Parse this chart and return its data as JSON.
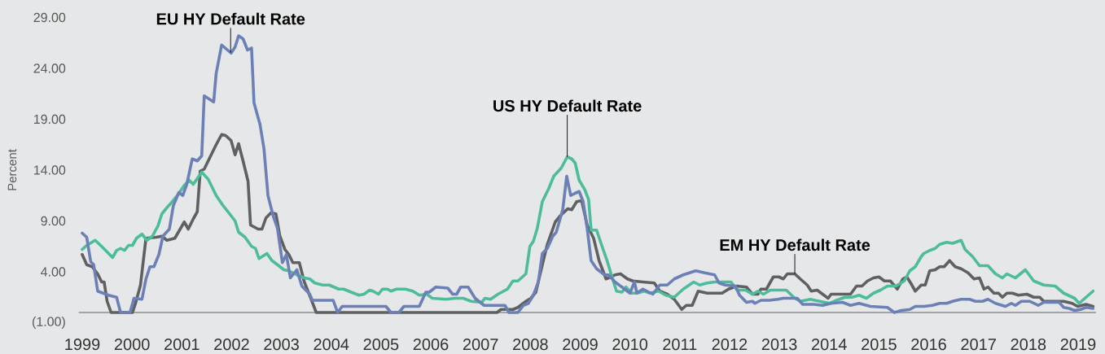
{
  "chart_data": {
    "type": "line",
    "ylabel": "Percent",
    "xlim": [
      1998.93,
      2019.36
    ],
    "xticks": [
      1999,
      2000,
      2001,
      2002,
      2003,
      2004,
      2005,
      2006,
      2007,
      2008,
      2009,
      2010,
      2011,
      2012,
      2013,
      2014,
      2015,
      2016,
      2017,
      2018,
      2019
    ],
    "ylim": [
      -1,
      29
    ],
    "yticks": [
      {
        "value": -1,
        "label": "(1.00)"
      },
      {
        "value": 4,
        "label": "4.00"
      },
      {
        "value": 9,
        "label": "9.00"
      },
      {
        "value": 14,
        "label": "14.00"
      },
      {
        "value": 19,
        "label": "19.00"
      },
      {
        "value": 24,
        "label": "24.00"
      },
      {
        "value": 29,
        "label": "29.00"
      }
    ],
    "series": [
      {
        "name": "EM HY Default Rate",
        "color": "#5f6062",
        "x": [
          1999.0,
          1999.09,
          1999.2,
          1999.31,
          1999.39,
          1999.44,
          1999.5,
          1999.58,
          2000.01,
          2000.07,
          2000.17,
          2000.28,
          2000.49,
          2000.6,
          2000.7,
          2000.86,
          2001.05,
          2001.13,
          2001.23,
          2001.31,
          2001.37,
          2001.45,
          2001.58,
          2001.69,
          2001.8,
          2001.88,
          2001.99,
          2002.07,
          2002.14,
          2002.24,
          2002.33,
          2002.38,
          2002.53,
          2002.61,
          2002.69,
          2002.79,
          2002.89,
          2002.97,
          2003.07,
          2003.15,
          2003.23,
          2003.36,
          2003.46,
          2003.59,
          2003.7,
          2007.33,
          2007.41,
          2007.65,
          2007.75,
          2007.91,
          2008.01,
          2008.11,
          2008.25,
          2008.34,
          2008.5,
          2008.6,
          2008.75,
          2008.83,
          2008.93,
          2009.03,
          2009.14,
          2009.27,
          2009.38,
          2009.52,
          2009.62,
          2009.7,
          2009.81,
          2009.95,
          2010.06,
          2010.26,
          2010.49,
          2010.6,
          2010.75,
          2010.89,
          2011.04,
          2011.13,
          2011.25,
          2011.37,
          2011.55,
          2011.85,
          2011.98,
          2012.15,
          2012.34,
          2012.46,
          2012.57,
          2012.63,
          2012.74,
          2012.88,
          2012.99,
          2013.08,
          2013.16,
          2013.31,
          2013.42,
          2013.56,
          2013.64,
          2013.76,
          2013.87,
          2013.98,
          2014.04,
          2014.43,
          2014.55,
          2014.66,
          2014.77,
          2014.89,
          2015.0,
          2015.11,
          2015.23,
          2015.37,
          2015.48,
          2015.56,
          2015.65,
          2015.73,
          2015.85,
          2015.93,
          2016.02,
          2016.13,
          2016.22,
          2016.31,
          2016.42,
          2016.53,
          2016.65,
          2016.79,
          2016.91,
          2017.02,
          2017.11,
          2017.19,
          2017.31,
          2017.4,
          2017.48,
          2017.57,
          2017.68,
          2017.8,
          2017.97,
          2018.11,
          2018.23,
          2018.31,
          2018.48,
          2018.71,
          2018.88,
          2018.99,
          2019.16,
          2019.3
        ],
        "values": [
          5.7,
          4.7,
          4.5,
          3.8,
          3.0,
          3.0,
          1.1,
          0,
          0,
          0.9,
          2.7,
          7.3,
          7.4,
          7.5,
          7.1,
          7.3,
          8.9,
          8.2,
          9.2,
          9.9,
          13.9,
          14.1,
          15.4,
          16.5,
          17.5,
          17.4,
          16.9,
          15.5,
          16.6,
          14.7,
          12.9,
          8.6,
          8.2,
          8.2,
          9.3,
          9.8,
          9.7,
          7.5,
          6.2,
          5.7,
          4.9,
          4.9,
          3.0,
          1.4,
          0,
          0,
          0.3,
          0.3,
          0.5,
          1.1,
          1.4,
          2.0,
          4.9,
          6.7,
          8.9,
          9.5,
          10.2,
          10.1,
          10.9,
          11.0,
          8.6,
          7.3,
          5.1,
          3.3,
          3.5,
          3.7,
          3.8,
          3.3,
          3.1,
          3.0,
          2.9,
          2.1,
          1.8,
          1.3,
          0.3,
          0.7,
          0.7,
          2.1,
          1.9,
          1.9,
          2.3,
          2.6,
          2.5,
          1.8,
          1.8,
          2.3,
          2.3,
          3.5,
          3.5,
          3.3,
          3.8,
          3.8,
          3.3,
          2.7,
          2.1,
          2.2,
          1.8,
          1.4,
          1.8,
          1.8,
          2.6,
          2.6,
          3.1,
          3.4,
          3.5,
          3.1,
          3.1,
          2.3,
          3.3,
          3.5,
          2.8,
          2.1,
          2.7,
          2.7,
          4.1,
          4.2,
          4.5,
          4.5,
          5.1,
          4.5,
          4.3,
          3.9,
          3.3,
          3.4,
          2.3,
          2.5,
          1.9,
          1.9,
          1.5,
          1.9,
          1.9,
          1.7,
          1.8,
          1.5,
          1.5,
          1.1,
          1.1,
          1.1,
          0.9,
          0.6,
          0.8,
          0.6
        ]
      },
      {
        "name": "US HY Default Rate",
        "color": "#4cbc9c",
        "x": [
          1999.0,
          1999.09,
          1999.26,
          1999.39,
          1999.61,
          1999.69,
          1999.77,
          1999.85,
          1999.93,
          2000.01,
          2000.09,
          2000.2,
          2000.3,
          2000.41,
          2000.52,
          2000.6,
          2000.7,
          2000.81,
          2000.91,
          2001.05,
          2001.15,
          2001.23,
          2001.4,
          2001.53,
          2001.69,
          2001.83,
          2001.96,
          2002.07,
          2002.14,
          2002.27,
          2002.4,
          2002.48,
          2002.55,
          2002.71,
          2002.81,
          2002.92,
          2003.05,
          2003.15,
          2003.31,
          2003.46,
          2003.57,
          2003.67,
          2003.83,
          2003.96,
          2004.15,
          2004.25,
          2004.4,
          2004.56,
          2004.66,
          2004.77,
          2004.84,
          2004.95,
          2005.03,
          2005.13,
          2005.2,
          2005.31,
          2005.49,
          2005.64,
          2005.77,
          2005.92,
          2006.03,
          2006.31,
          2006.49,
          2006.65,
          2006.81,
          2007.02,
          2007.09,
          2007.2,
          2007.35,
          2007.54,
          2007.65,
          2007.75,
          2007.91,
          2007.99,
          2008.06,
          2008.14,
          2008.24,
          2008.37,
          2008.47,
          2008.62,
          2008.74,
          2008.83,
          2008.9,
          2008.98,
          2009.09,
          2009.17,
          2009.22,
          2009.33,
          2009.44,
          2009.54,
          2009.62,
          2009.73,
          2009.84,
          2009.92,
          2010.03,
          2010.14,
          2010.29,
          2010.4,
          2010.57,
          2010.72,
          2010.89,
          2011.07,
          2011.28,
          2011.4,
          2011.55,
          2011.7,
          2011.85,
          2012.03,
          2012.15,
          2012.32,
          2012.46,
          2012.57,
          2012.68,
          2012.82,
          2013.14,
          2013.31,
          2013.42,
          2013.62,
          2013.81,
          2014.01,
          2014.15,
          2014.32,
          2014.46,
          2014.6,
          2014.75,
          2014.89,
          2015.03,
          2015.17,
          2015.34,
          2015.51,
          2015.62,
          2015.73,
          2015.85,
          2015.9,
          2016.02,
          2016.13,
          2016.22,
          2016.36,
          2016.48,
          2016.65,
          2016.73,
          2016.88,
          2017.02,
          2017.19,
          2017.34,
          2017.48,
          2017.57,
          2017.74,
          2017.94,
          2018.11,
          2018.31,
          2018.54,
          2018.71,
          2018.93,
          2019.02,
          2019.3
        ],
        "values": [
          6.2,
          6.6,
          7.1,
          6.5,
          5.4,
          6.1,
          6.3,
          6.1,
          6.6,
          6.6,
          7.3,
          7.7,
          7.1,
          7.5,
          8.5,
          9.7,
          10.3,
          10.9,
          11.5,
          12.5,
          13.0,
          12.6,
          13.8,
          13.1,
          11.5,
          10.5,
          9.7,
          9.0,
          7.9,
          7.4,
          6.5,
          6.3,
          5.3,
          5.8,
          5.1,
          4.7,
          4.2,
          4.1,
          3.7,
          3.4,
          3.3,
          2.9,
          2.7,
          2.7,
          2.3,
          2.3,
          2.0,
          1.7,
          1.8,
          2.2,
          2.1,
          1.8,
          2.3,
          2.3,
          2.1,
          2.3,
          2.3,
          2.1,
          1.7,
          1.8,
          1.4,
          1.3,
          1.4,
          1.4,
          1.1,
          1.0,
          1.4,
          1.3,
          1.8,
          2.3,
          3.1,
          3.1,
          3.8,
          6.5,
          7.0,
          8.3,
          10.9,
          12.2,
          13.4,
          14.2,
          15.3,
          15.1,
          14.7,
          13.0,
          12.1,
          11.1,
          8.1,
          8.1,
          6.5,
          5.1,
          3.8,
          2.1,
          2.0,
          2.5,
          1.9,
          1.9,
          2.1,
          1.9,
          2.1,
          1.7,
          1.5,
          2.3,
          3.0,
          2.7,
          2.9,
          3.0,
          3.0,
          3.0,
          2.2,
          2.2,
          1.8,
          2.1,
          1.8,
          2.2,
          2.2,
          1.4,
          1.1,
          1.3,
          1.1,
          0.9,
          1.2,
          1.5,
          1.5,
          1.7,
          1.4,
          1.9,
          2.2,
          2.6,
          2.6,
          3.1,
          4.1,
          4.5,
          5.5,
          5.8,
          6.1,
          6.3,
          6.7,
          6.9,
          6.8,
          7.1,
          6.2,
          5.5,
          4.6,
          4.6,
          3.8,
          3.4,
          3.8,
          3.4,
          4.2,
          3.1,
          2.7,
          2.6,
          1.9,
          1.4,
          0.9,
          2.1
        ]
      },
      {
        "name": "EU HY Default Rate",
        "color": "#6b80b6",
        "x": [
          1999.0,
          1999.09,
          1999.17,
          1999.23,
          1999.31,
          1999.42,
          1999.53,
          1999.69,
          1999.77,
          1999.96,
          2000.04,
          2000.2,
          2000.28,
          2000.36,
          2000.44,
          2000.54,
          2000.62,
          2000.75,
          2000.83,
          2000.94,
          2001.02,
          2001.1,
          2001.21,
          2001.31,
          2001.4,
          2001.45,
          2001.64,
          2001.69,
          2001.8,
          2001.99,
          2002.07,
          2002.14,
          2002.23,
          2002.32,
          2002.4,
          2002.45,
          2002.57,
          2002.65,
          2002.73,
          2002.84,
          2002.92,
          2003.02,
          2003.1,
          2003.18,
          2003.31,
          2003.41,
          2003.57,
          2003.62,
          2004.04,
          2004.13,
          2004.22,
          2005.1,
          2005.2,
          2005.36,
          2005.46,
          2005.77,
          2005.9,
          2005.97,
          2006.1,
          2006.34,
          2006.44,
          2006.52,
          2006.6,
          2006.75,
          2006.89,
          2007.07,
          2007.49,
          2007.57,
          2007.75,
          2007.86,
          2007.96,
          2008.06,
          2008.16,
          2008.24,
          2008.34,
          2008.45,
          2008.52,
          2008.65,
          2008.73,
          2008.81,
          2008.89,
          2008.98,
          2009.06,
          2009.14,
          2009.22,
          2009.33,
          2009.49,
          2009.57,
          2009.7,
          2009.84,
          2010.0,
          2010.09,
          2010.14,
          2010.26,
          2010.46,
          2010.6,
          2010.75,
          2010.89,
          2011.07,
          2011.32,
          2011.5,
          2011.7,
          2011.79,
          2011.91,
          2012.12,
          2012.2,
          2012.34,
          2012.46,
          2012.51,
          2012.63,
          2012.8,
          2012.97,
          2013.08,
          2013.36,
          2013.47,
          2013.7,
          2013.87,
          2014.04,
          2014.27,
          2014.43,
          2014.6,
          2014.83,
          2015.17,
          2015.31,
          2015.45,
          2015.62,
          2015.73,
          2015.9,
          2016.07,
          2016.22,
          2016.36,
          2016.48,
          2016.65,
          2016.82,
          2016.94,
          2017.08,
          2017.19,
          2017.34,
          2017.54,
          2017.66,
          2017.74,
          2017.86,
          2018.03,
          2018.2,
          2018.31,
          2018.62,
          2018.71,
          2018.82,
          2018.93,
          2019.05,
          2019.16,
          2019.3
        ],
        "values": [
          7.8,
          7.4,
          5.0,
          4.7,
          2.1,
          1.9,
          1.7,
          1.5,
          0,
          0,
          1.4,
          1.3,
          3.3,
          4.5,
          4.5,
          5.7,
          7.5,
          8.2,
          10.5,
          11.8,
          11.5,
          12.6,
          15.1,
          14.9,
          15.4,
          21.3,
          20.7,
          23.5,
          26.3,
          25.5,
          26.1,
          27.2,
          26.9,
          25.8,
          26.0,
          20.6,
          18.5,
          16.1,
          11.5,
          9.4,
          8.3,
          4.9,
          5.7,
          3.4,
          4.2,
          2.6,
          1.8,
          1.2,
          1.2,
          0,
          0.6,
          0.6,
          0,
          0,
          0.6,
          0.6,
          2.0,
          2.0,
          2.5,
          2.4,
          1.8,
          1.8,
          2.5,
          2.5,
          1.4,
          0.7,
          0.7,
          0,
          0,
          0.7,
          0.9,
          1.7,
          3.0,
          5.8,
          6.3,
          7.5,
          7.9,
          10.1,
          13.4,
          11.5,
          11.7,
          11.9,
          10.9,
          8.3,
          5.1,
          4.3,
          3.7,
          3.7,
          3.0,
          2.5,
          1.9,
          3.0,
          1.9,
          2.3,
          1.8,
          2.7,
          2.7,
          3.3,
          3.7,
          4.1,
          3.9,
          3.7,
          2.9,
          2.7,
          2.6,
          1.7,
          1.0,
          1.1,
          0.9,
          1.2,
          1.2,
          1.3,
          1.4,
          1.4,
          0.8,
          0.8,
          0.7,
          0.9,
          1.0,
          0.7,
          0.9,
          0.6,
          0.5,
          0,
          0.2,
          0.3,
          0.6,
          0.6,
          0.7,
          0.9,
          0.9,
          1.1,
          1.3,
          1.3,
          1.1,
          1.1,
          1.3,
          0.9,
          0.6,
          0.9,
          0.7,
          1.1,
          1.1,
          0.7,
          1.0,
          1.0,
          0.5,
          0.4,
          0.2,
          0.3,
          0.5,
          0.4
        ]
      }
    ]
  }
}
